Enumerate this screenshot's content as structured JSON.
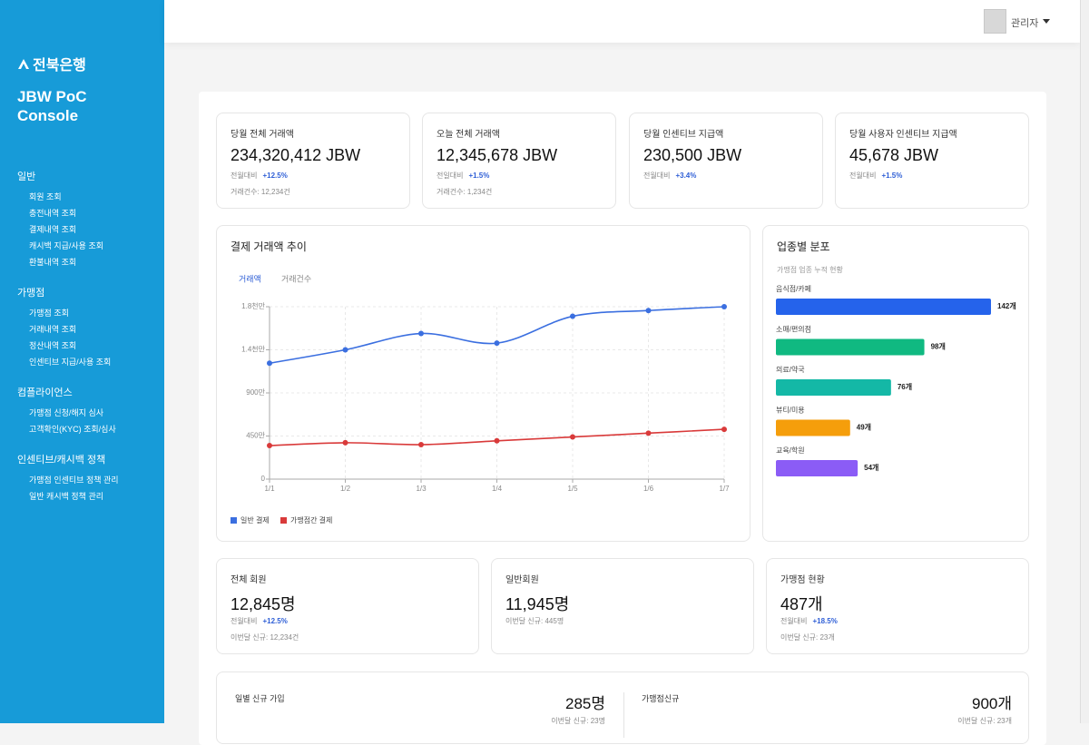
{
  "sidebar": {
    "logo": "전북은행",
    "title": "JBW PoC Console",
    "sections": [
      {
        "heading": "일반",
        "items": [
          "회원 조회",
          "충전내역 조회",
          "결제내역 조회",
          "캐시백 지급/사용 조회",
          "환불내역 조회"
        ]
      },
      {
        "heading": "가맹점",
        "items": [
          "가맹점 조회",
          "거래내역 조회",
          "정산내역 조회",
          "인센티브 지급/사용 조회"
        ]
      },
      {
        "heading": "컴플라이언스",
        "items": [
          "가맹점 신청/해지 심사",
          "고객확인(KYC) 조회/심사"
        ]
      },
      {
        "heading": "인센티브/캐시백 정책",
        "items": [
          "가맹점 인센티브 정책 관리",
          "일반 캐시백 정책 관리"
        ]
      }
    ]
  },
  "header": {
    "user": "관리자"
  },
  "top_cards": [
    {
      "label": "당월 전체 거래액",
      "value": "234,320,412 JBW",
      "change_label": "전월대비",
      "change": "+12.5%",
      "note": "거래건수: 12,234건"
    },
    {
      "label": "오늘 전체 거래액",
      "value": "12,345,678 JBW",
      "change_label": "전일대비",
      "change": "+1.5%",
      "note": "거래건수: 1,234건"
    },
    {
      "label": "당월 인센티브 지급액",
      "value": "230,500 JBW",
      "change_label": "전월대비",
      "change": "+3.4%"
    },
    {
      "label": "당월 사용자 인센티브 지급액",
      "value": "45,678 JBW",
      "change_label": "전월대비",
      "change": "+1.5%"
    }
  ],
  "line_tabs": [
    "거래액",
    "거래건수"
  ],
  "chart_data": [
    {
      "type": "line",
      "title": "결제 거래액 추이",
      "categories": [
        "1/1",
        "1/2",
        "1/3",
        "1/4",
        "1/5",
        "1/6",
        "1/7"
      ],
      "series": [
        {
          "name": "일반 결제",
          "color": "#3b6fe0",
          "values": [
            12100000,
            13500000,
            15200000,
            14200000,
            17000000,
            17600000,
            18000000
          ]
        },
        {
          "name": "가맹점간 결제",
          "color": "#d93a3a",
          "values": [
            3500000,
            3800000,
            3600000,
            4000000,
            4400000,
            4800000,
            5200000
          ]
        }
      ],
      "ylim": [
        0,
        18000000
      ],
      "yticks": [
        0,
        {
          "value": 4500000,
          "label": "450만"
        },
        {
          "value": 9000000,
          "label": "900만"
        },
        {
          "value": 13500000,
          "label": "1.4천만"
        },
        {
          "value": 18000000,
          "label": "1.8천만"
        }
      ],
      "grid": true,
      "legend": "bottom-left"
    },
    {
      "type": "barh",
      "title": "업종별 분포",
      "subtitle": "가맹점 업종 누적 현황",
      "categories": [
        "음식점/카페",
        "소매/편의점",
        "의료/약국",
        "뷰티/미용",
        "교육/학원"
      ],
      "values": [
        142,
        98,
        76,
        49,
        54
      ],
      "value_labels": [
        "142개",
        "98개",
        "76개",
        "49개",
        "54개"
      ],
      "colors": [
        "#2563eb",
        "#10b981",
        "#14b8a6",
        "#f59e0b",
        "#8b5cf6"
      ]
    }
  ],
  "bottom_cards": [
    {
      "label": "전체 회원",
      "value": "12,845명",
      "change_label": "전월대비",
      "change": "+12.5%",
      "note": "이번달 신규: 12,234건"
    },
    {
      "label": "일반회원",
      "value": "11,945명",
      "note": "이번달 신규: 445명"
    },
    {
      "label": "가맹점 현황",
      "value": "487개",
      "change_label": "전월대비",
      "change": "+18.5%",
      "note": "이번달 신규: 23개"
    }
  ],
  "daily_cards": [
    {
      "label": "일별 신규 가입",
      "value": "285명",
      "note": "이번달 신규: 23명"
    },
    {
      "label": "가맹점신규",
      "value": "900개",
      "note": "이번달 신규: 23개"
    }
  ]
}
